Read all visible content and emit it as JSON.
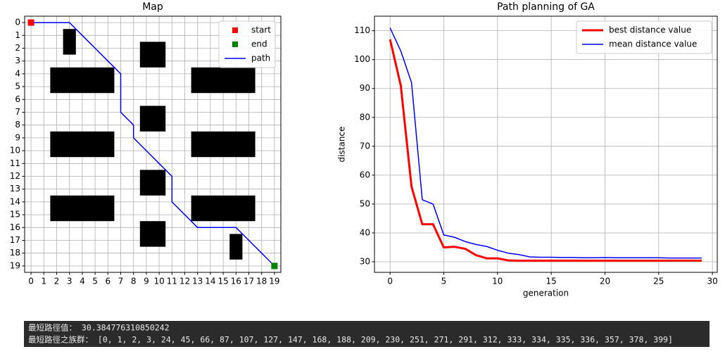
{
  "chart_data": [
    {
      "type": "grid_map",
      "title": "Map",
      "xlim": [
        -0.5,
        19.5
      ],
      "ylim": [
        19.5,
        -0.5
      ],
      "xticks": [
        0,
        1,
        2,
        3,
        4,
        5,
        6,
        7,
        8,
        9,
        10,
        11,
        12,
        13,
        14,
        15,
        16,
        17,
        18,
        19
      ],
      "yticks": [
        0,
        1,
        2,
        3,
        4,
        5,
        6,
        7,
        8,
        9,
        10,
        11,
        12,
        13,
        14,
        15,
        16,
        17,
        18,
        19
      ],
      "grid": true,
      "legend": "upper right",
      "obstacle_color": "black",
      "obstacles": [
        {
          "x": [
            3,
            3
          ],
          "y": [
            1,
            2
          ]
        },
        {
          "x": [
            9,
            10
          ],
          "y": [
            2,
            3
          ]
        },
        {
          "x": [
            2,
            6
          ],
          "y": [
            4,
            5
          ]
        },
        {
          "x": [
            13,
            17
          ],
          "y": [
            4,
            5
          ]
        },
        {
          "x": [
            9,
            10
          ],
          "y": [
            7,
            8
          ]
        },
        {
          "x": [
            2,
            6
          ],
          "y": [
            9,
            10
          ]
        },
        {
          "x": [
            13,
            17
          ],
          "y": [
            9,
            10
          ]
        },
        {
          "x": [
            9,
            10
          ],
          "y": [
            12,
            13
          ]
        },
        {
          "x": [
            2,
            6
          ],
          "y": [
            14,
            15
          ]
        },
        {
          "x": [
            13,
            17
          ],
          "y": [
            14,
            15
          ]
        },
        {
          "x": [
            9,
            10
          ],
          "y": [
            16,
            17
          ]
        },
        {
          "x": [
            16,
            16
          ],
          "y": [
            17,
            18
          ]
        }
      ],
      "markers": [
        {
          "name": "start",
          "color": "red",
          "x": 0,
          "y": 0
        },
        {
          "name": "end",
          "color": "green",
          "x": 19,
          "y": 19
        }
      ],
      "series": [
        {
          "name": "path",
          "color": "blue",
          "x": [
            0,
            1,
            2,
            3,
            4,
            5,
            6,
            7,
            7,
            7,
            7,
            8,
            8,
            9,
            10,
            11,
            11,
            11,
            12,
            13,
            14,
            15,
            16,
            17,
            18,
            19
          ],
          "y": [
            0,
            0,
            0,
            0,
            1,
            2,
            3,
            4,
            5,
            6,
            7,
            8,
            9,
            10,
            11,
            12,
            13,
            14,
            15,
            16,
            16,
            16,
            16,
            17,
            18,
            19
          ]
        }
      ]
    },
    {
      "type": "line",
      "title": "Path planning of GA",
      "xlabel": "generation",
      "ylabel": "distance",
      "x": [
        0,
        1,
        2,
        3,
        4,
        5,
        6,
        7,
        8,
        9,
        10,
        11,
        12,
        13,
        14,
        15,
        16,
        17,
        18,
        19,
        20,
        21,
        22,
        23,
        24,
        25,
        26,
        27,
        28,
        29
      ],
      "xlim": [
        -1.45,
        30.45
      ],
      "xticks": [
        0,
        5,
        10,
        15,
        20,
        25,
        30
      ],
      "ylim": [
        26.35,
        115.03
      ],
      "yticks": [
        30,
        40,
        50,
        60,
        70,
        80,
        90,
        100,
        110
      ],
      "grid": true,
      "legend": "upper right",
      "series": [
        {
          "name": "best distance value",
          "color": "red",
          "width": 3,
          "values": [
            107,
            91,
            56,
            43,
            43,
            35,
            35.2,
            34.5,
            32.3,
            31.2,
            31.2,
            30.5,
            30.4,
            30.4,
            30.4,
            30.4,
            30.4,
            30.4,
            30.4,
            30.4,
            30.4,
            30.4,
            30.4,
            30.4,
            30.4,
            30.4,
            30.4,
            30.4,
            30.4,
            30.4
          ]
        },
        {
          "name": "mean distance value",
          "color": "blue",
          "width": 1.5,
          "values": [
            111,
            103,
            92,
            51.5,
            50,
            39.3,
            38.5,
            37,
            36,
            35.3,
            34,
            33,
            32.5,
            31.7,
            31.6,
            31.6,
            31.5,
            31.5,
            31.4,
            31.4,
            31.5,
            31.4,
            31.4,
            31.4,
            31.4,
            31.4,
            31.3,
            31.3,
            31.3,
            31.3
          ]
        }
      ]
    }
  ],
  "console": {
    "lines": [
      "最短路徑值： 30.384776310850242",
      "最短路徑之族群： [0, 1, 2, 3, 24, 45, 66, 87, 107, 127, 147, 168, 188, 209, 230, 251, 271, 291, 312, 333, 334, 335, 336, 357, 378, 399]"
    ]
  }
}
